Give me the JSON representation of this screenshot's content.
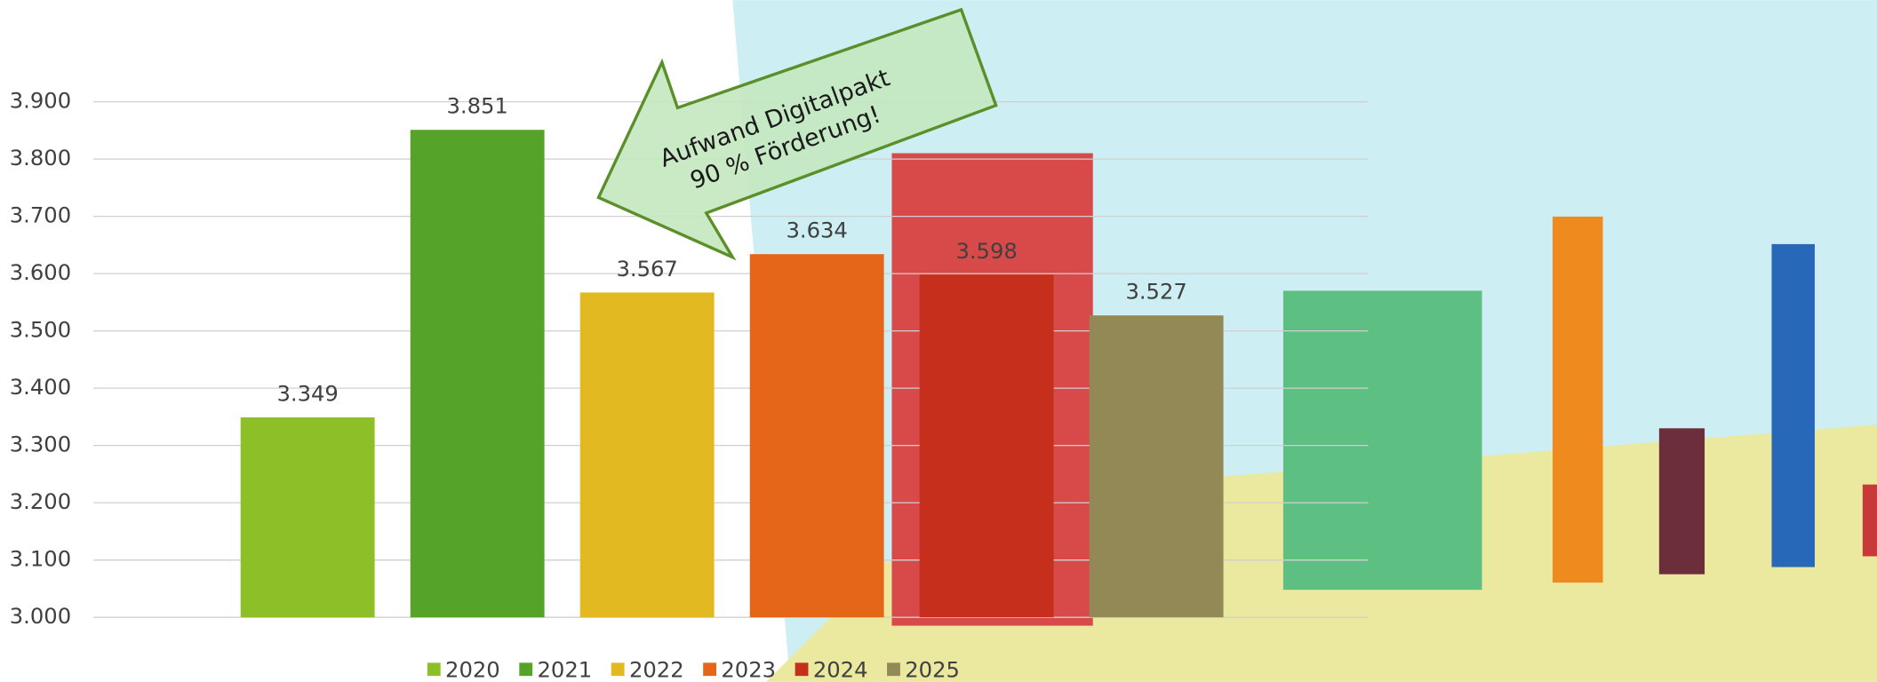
{
  "chart_data": {
    "type": "bar",
    "categories": [
      "2020",
      "2021",
      "2022",
      "2023",
      "2024",
      "2025"
    ],
    "values": [
      3349,
      3851,
      3567,
      3634,
      3598,
      3527
    ],
    "value_labels": [
      "3.349",
      "3.851",
      "3.567",
      "3.634",
      "3.598",
      "3.527"
    ],
    "colors": [
      "#8dc026",
      "#56a329",
      "#e3b921",
      "#e66619",
      "#c52f1b",
      "#928957"
    ],
    "ylim": [
      3000,
      3900
    ],
    "yticks": [
      {
        "value": 3000,
        "label": "3.000"
      },
      {
        "value": 3100,
        "label": "3.100"
      },
      {
        "value": 3200,
        "label": "3.200"
      },
      {
        "value": 3300,
        "label": "3.300"
      },
      {
        "value": 3400,
        "label": "3.400"
      },
      {
        "value": 3500,
        "label": "3.500"
      },
      {
        "value": 3600,
        "label": "3.600"
      },
      {
        "value": 3700,
        "label": "3.700"
      },
      {
        "value": 3800,
        "label": "3.800"
      },
      {
        "value": 3900,
        "label": "3.900"
      }
    ],
    "grid": true,
    "annotation": [
      "Aufwand Digitalpakt",
      "90 % Förderung!"
    ]
  }
}
